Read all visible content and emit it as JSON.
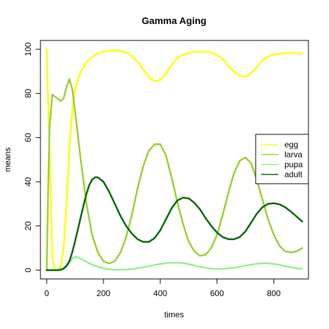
{
  "chart_data": {
    "type": "line",
    "title": "Gamma Aging",
    "xlabel": "times",
    "ylabel": "means",
    "xlim": [
      -22,
      922
    ],
    "ylim": [
      -4,
      104
    ],
    "xticks": [
      0,
      200,
      400,
      600,
      800
    ],
    "yticks": [
      0,
      20,
      40,
      60,
      80,
      100
    ],
    "grid": false,
    "legend_position": "right",
    "series": [
      {
        "name": "egg",
        "color": "#ffff00",
        "x": [
          0,
          10,
          20,
          30,
          40,
          50,
          60,
          70,
          80,
          90,
          100,
          120,
          140,
          160,
          180,
          200,
          220,
          240,
          260,
          280,
          300,
          320,
          340,
          360,
          380,
          400,
          420,
          440,
          460,
          480,
          500,
          520,
          540,
          560,
          580,
          600,
          620,
          640,
          660,
          680,
          700,
          720,
          740,
          760,
          780,
          800,
          820,
          840,
          860,
          880,
          900
        ],
        "y": [
          100,
          55,
          5,
          0,
          0,
          2,
          10,
          30,
          55,
          72,
          82,
          90,
          94,
          96.5,
          98,
          99,
          99.5,
          99.5,
          99.3,
          98.5,
          97,
          94.5,
          91,
          87.5,
          85.5,
          86,
          89,
          93,
          96,
          97.5,
          98.3,
          98.8,
          99,
          98.9,
          98.5,
          97.5,
          95.5,
          92.5,
          90,
          88,
          87.5,
          89,
          92,
          95,
          96.8,
          97.6,
          98,
          98.3,
          98.3,
          98.2,
          98
        ]
      },
      {
        "name": "larva",
        "color": "#9acd32",
        "x": [
          0,
          5,
          10,
          20,
          30,
          40,
          50,
          60,
          70,
          80,
          90,
          100,
          120,
          140,
          160,
          180,
          200,
          220,
          240,
          260,
          280,
          300,
          320,
          340,
          360,
          380,
          400,
          420,
          440,
          460,
          480,
          500,
          520,
          540,
          560,
          580,
          600,
          620,
          640,
          660,
          680,
          700,
          720,
          740,
          760,
          780,
          800,
          820,
          840,
          860,
          880,
          900
        ],
        "y": [
          0,
          35,
          65,
          79.5,
          78.5,
          77.5,
          76.5,
          78,
          83,
          86.5,
          82,
          72,
          50,
          30,
          16,
          8,
          4,
          3,
          4,
          8,
          15,
          25,
          37,
          47,
          54,
          57,
          57,
          52,
          42,
          31,
          21,
          13,
          8.5,
          6.5,
          7,
          10,
          16,
          25,
          35,
          44,
          49.5,
          51,
          48.5,
          41,
          32,
          23,
          16,
          11,
          8.5,
          8,
          8.5,
          10
        ]
      },
      {
        "name": "pupa",
        "color": "#90ee90",
        "x": [
          0,
          20,
          40,
          60,
          70,
          80,
          90,
          100,
          110,
          120,
          140,
          160,
          180,
          200,
          220,
          240,
          260,
          280,
          300,
          320,
          340,
          360,
          380,
          400,
          420,
          440,
          460,
          480,
          500,
          520,
          540,
          560,
          580,
          600,
          620,
          640,
          660,
          680,
          700,
          720,
          740,
          760,
          780,
          800,
          820,
          840,
          860,
          880,
          900
        ],
        "y": [
          0,
          0,
          0,
          0.5,
          1.5,
          3.5,
          5.2,
          6,
          5.8,
          5.2,
          3.8,
          2.5,
          1.5,
          0.8,
          0.4,
          0.2,
          0.2,
          0.3,
          0.5,
          0.9,
          1.3,
          1.8,
          2.3,
          2.8,
          3.2,
          3.4,
          3.4,
          3.2,
          2.7,
          2.1,
          1.5,
          1,
          0.7,
          0.6,
          0.6,
          0.8,
          1.1,
          1.5,
          2,
          2.5,
          2.9,
          3.1,
          3.1,
          2.8,
          2.4,
          1.8,
          1.3,
          0.9,
          0.6
        ]
      },
      {
        "name": "adult",
        "color": "#006400",
        "x": [
          0,
          20,
          40,
          50,
          60,
          70,
          80,
          90,
          100,
          110,
          120,
          130,
          140,
          150,
          160,
          170,
          180,
          200,
          220,
          240,
          260,
          280,
          300,
          320,
          340,
          360,
          380,
          400,
          420,
          440,
          460,
          480,
          500,
          520,
          540,
          560,
          580,
          600,
          620,
          640,
          660,
          680,
          700,
          720,
          740,
          760,
          780,
          800,
          820,
          840,
          860,
          880,
          900
        ],
        "y": [
          0,
          0,
          0,
          0.2,
          0.8,
          2,
          4,
          8,
          13,
          18.5,
          24,
          29.5,
          34.5,
          38.5,
          41,
          42,
          42,
          40,
          35.5,
          30,
          24.5,
          20,
          16.5,
          14,
          12.8,
          12.8,
          14.5,
          18,
          23,
          28,
          31.5,
          32.8,
          32.5,
          30.5,
          27.5,
          23.5,
          20,
          17,
          15,
          14,
          14,
          15,
          17.5,
          21.5,
          25.5,
          28.5,
          30,
          30.3,
          29.8,
          28.5,
          26.5,
          24.3,
          22
        ]
      }
    ]
  }
}
